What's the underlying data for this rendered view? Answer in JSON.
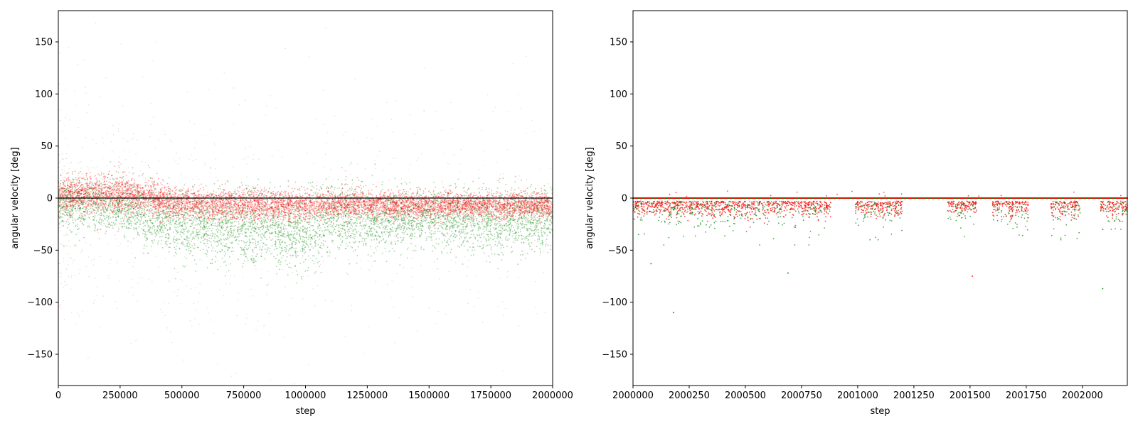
{
  "chart_data": [
    {
      "type": "scatter",
      "xlabel": "step",
      "ylabel": "angular velocity [deg]",
      "xlim": [
        0,
        2000000
      ],
      "ylim": [
        -180,
        180
      ],
      "xticks": [
        0,
        250000,
        500000,
        750000,
        1000000,
        1250000,
        1500000,
        1750000,
        2000000
      ],
      "yticks": [
        -150,
        -100,
        -50,
        0,
        50,
        100,
        150
      ],
      "reference_line": {
        "y": 0,
        "color": "#000000"
      },
      "series": [
        {
          "color": "#008000",
          "mean_profile": {
            "x": [
              0,
              250000,
              400000,
              500000,
              750000,
              1000000,
              1100000,
              1250000,
              1500000,
              1750000,
              2000000
            ],
            "y": [
              -3,
              -8,
              -18,
              -26,
              -28,
              -32,
              -20,
              -20,
              -19,
              -22,
              -20
            ]
          },
          "spread_profile": {
            "x": [
              0,
              250000,
              500000,
              750000,
              1000000,
              1250000,
              1500000,
              1750000,
              2000000
            ],
            "y": [
              12,
              14,
              16,
              18,
              18,
              14,
              13,
              15,
              14
            ]
          }
        },
        {
          "color": "#ff0000",
          "mean_profile": {
            "x": [
              0,
              250000,
              500000,
              750000,
              1000000,
              1250000,
              1500000,
              1750000,
              2000000
            ],
            "y": [
              2,
              5,
              -5,
              -7,
              -7,
              -6,
              -7,
              -7,
              -7
            ]
          },
          "spread_profile": {
            "x": [
              0,
              250000,
              500000,
              750000,
              1000000,
              1250000,
              1500000,
              1750000,
              2000000
            ],
            "y": [
              8,
              9,
              7,
              7,
              7,
              6,
              6,
              6,
              6
            ]
          }
        }
      ]
    },
    {
      "type": "scatter",
      "xlabel": "step",
      "ylabel": "angular velocity [deg]",
      "xlim": [
        2000000,
        2002200
      ],
      "ylim": [
        -180,
        180
      ],
      "xticks": [
        2000000,
        2000250,
        2000500,
        2000750,
        2001000,
        2001250,
        2001500,
        2001750,
        2002000
      ],
      "yticks": [
        -150,
        -100,
        -50,
        0,
        50,
        100,
        150
      ],
      "series": [
        {
          "color": "#008000",
          "baseline": 0
        },
        {
          "color": "#ff0000",
          "baseline": 0
        }
      ],
      "clusters": [
        {
          "x_start": 2000000,
          "x_end": 2000880,
          "y_min": -45,
          "y_max": -3
        },
        {
          "x_start": 2000990,
          "x_end": 2001200,
          "y_min": -40,
          "y_max": -3
        },
        {
          "x_start": 2001400,
          "x_end": 2001530,
          "y_min": -45,
          "y_max": -3
        },
        {
          "x_start": 2001600,
          "x_end": 2001760,
          "y_min": -40,
          "y_max": -3
        },
        {
          "x_start": 2001860,
          "x_end": 2001990,
          "y_min": -40,
          "y_max": -3
        },
        {
          "x_start": 2002080,
          "x_end": 2002200,
          "y_min": -30,
          "y_max": -3
        }
      ],
      "outliers": [
        {
          "x": 2000180,
          "y": -110
        },
        {
          "x": 2002090,
          "y": -87
        },
        {
          "x": 2001510,
          "y": -75
        },
        {
          "x": 2000690,
          "y": -72
        },
        {
          "x": 2000080,
          "y": -63
        }
      ]
    }
  ]
}
